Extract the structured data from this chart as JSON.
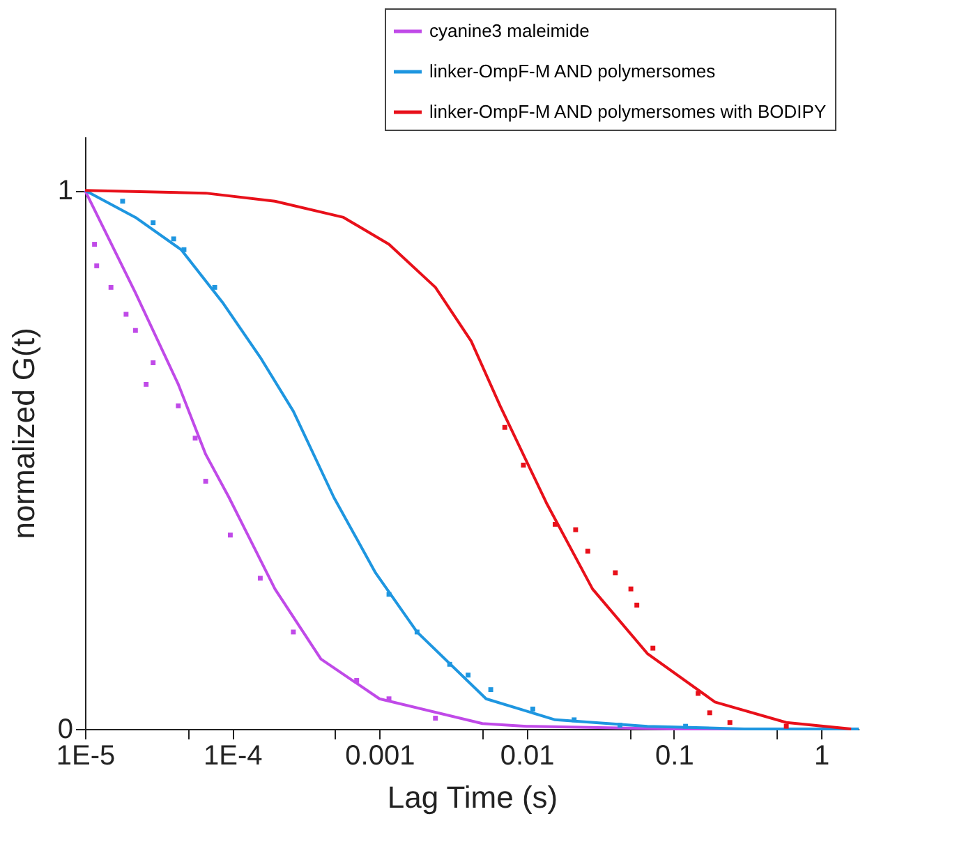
{
  "chart_data": {
    "type": "line",
    "xlabel": "Lag Time (s)",
    "ylabel": "normalized G(t)",
    "log": "x",
    "xlim": [
      1e-05,
      1.8
    ],
    "ylim": [
      0,
      1.1
    ],
    "xticks": [
      {
        "value": 1e-05,
        "label": "1E-5"
      },
      {
        "value": 5e-05,
        "label": null
      },
      {
        "value": 0.0001,
        "label": "1E-4"
      },
      {
        "value": 0.0005,
        "label": null
      },
      0.001,
      {
        "value": 0.005,
        "label": null
      },
      0.01,
      {
        "value": 0.05,
        "label": null
      },
      0.1,
      {
        "value": 0.5,
        "label": null
      },
      1
    ],
    "yticks": [
      0,
      1
    ],
    "grid": false,
    "legend": "top right",
    "line_style": "solid",
    "series": [
      {
        "name": "cyanine3 maleimide",
        "color": "#c04ae8",
        "x": [
          1e-05,
          2.2e-05,
          4.3e-05,
          6.6e-05,
          9.5e-05,
          0.000195,
          0.0004,
          0.001,
          0.005,
          0.01,
          0.1,
          1.8
        ],
        "values": [
          1.0,
          0.81,
          0.64,
          0.51,
          0.43,
          0.26,
          0.13,
          0.056,
          0.01,
          0.005,
          0,
          0
        ]
      },
      {
        "name": "linker-OmpF-M AND polymersomes",
        "color": "#1e96e0",
        "x": [
          1e-05,
          2.2e-05,
          4.5e-05,
          8.7e-05,
          0.000155,
          0.00026,
          0.00049,
          0.00094,
          0.0018,
          0.0053,
          0.0156,
          0.066,
          0.3,
          1.8
        ],
        "values": [
          1.0,
          0.95,
          0.89,
          0.79,
          0.69,
          0.59,
          0.43,
          0.29,
          0.18,
          0.056,
          0.017,
          0.005,
          0,
          0
        ]
      },
      {
        "name": "linker-OmpF-M AND polymersomes with BODIPY",
        "color": "#e8101a",
        "x": [
          1e-05,
          6.6e-05,
          0.000195,
          0.00057,
          0.00116,
          0.0024,
          0.0042,
          0.0066,
          0.0136,
          0.028,
          0.066,
          0.19,
          0.58,
          1.6
        ],
        "values": [
          1.0,
          0.995,
          0.98,
          0.95,
          0.9,
          0.82,
          0.72,
          0.6,
          0.42,
          0.26,
          0.14,
          0.05,
          0.012,
          0
        ]
      },
      {
        "type": "scatter",
        "marker": "square",
        "color": "#c04ae8",
        "x": [
          1.16e-05,
          1.2e-05,
          1.5e-05,
          1.9e-05,
          2.2e-05,
          2.9e-05,
          2.6e-05,
          4.3e-05,
          5.6e-05,
          6.6e-05,
          9.7e-05,
          0.000155,
          0.00026,
          0.0007,
          0.00116,
          0.0024
        ],
        "values": [
          0.9,
          0.86,
          0.82,
          0.77,
          0.74,
          0.68,
          0.64,
          0.6,
          0.54,
          0.46,
          0.36,
          0.28,
          0.18,
          0.09,
          0.056,
          0.02
        ]
      },
      {
        "type": "scatter",
        "marker": "square",
        "color": "#1e96e0",
        "x": [
          1.8e-05,
          2.9e-05,
          4e-05,
          4.7e-05,
          7.6e-05,
          0.00116,
          0.0018,
          0.003,
          0.004,
          0.0057,
          0.011,
          0.021,
          0.043,
          0.12
        ],
        "values": [
          0.98,
          0.94,
          0.91,
          0.89,
          0.82,
          0.25,
          0.18,
          0.12,
          0.1,
          0.073,
          0.037,
          0.017,
          0.007,
          0.005
        ]
      },
      {
        "type": "scatter",
        "marker": "square",
        "color": "#e8101a",
        "x": [
          0.0071,
          0.0095,
          0.0156,
          0.0215,
          0.026,
          0.04,
          0.051,
          0.056,
          0.072,
          0.146,
          0.175,
          0.24,
          0.58
        ],
        "values": [
          0.56,
          0.49,
          0.38,
          0.37,
          0.33,
          0.29,
          0.26,
          0.23,
          0.15,
          0.066,
          0.03,
          0.012,
          0.005
        ]
      }
    ]
  }
}
